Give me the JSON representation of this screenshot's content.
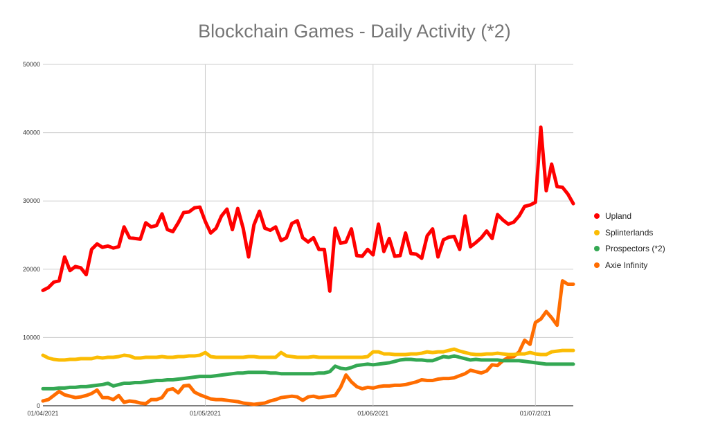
{
  "chart_data": {
    "type": "line",
    "title": "Blockchain Games - Daily Activity (*2)",
    "xlabel": "",
    "ylabel": "",
    "x_start": "2021-04-01",
    "x_tick_labels": [
      "01/04/2021",
      "01/05/2021",
      "01/06/2021",
      "01/07/2021"
    ],
    "y_tick_labels": [
      "0",
      "10000",
      "20000",
      "30000",
      "40000",
      "50000"
    ],
    "ylim": [
      0,
      50000
    ],
    "grid": true,
    "legend_position": "right",
    "series": [
      {
        "name": "Upland",
        "color": "#ff0000",
        "values": [
          16900,
          17300,
          18100,
          18300,
          21800,
          19800,
          20400,
          20200,
          19200,
          22900,
          23700,
          23200,
          23400,
          23100,
          23300,
          26200,
          24600,
          24500,
          24400,
          26800,
          26200,
          26400,
          28100,
          25800,
          25500,
          26800,
          28300,
          28400,
          29000,
          29100,
          27000,
          25300,
          26000,
          27800,
          28800,
          25800,
          28900,
          26000,
          21800,
          26500,
          28500,
          26000,
          25700,
          26200,
          24200,
          24600,
          26700,
          27100,
          24600,
          24000,
          24600,
          22900,
          22900,
          16800,
          26000,
          23800,
          24000,
          25900,
          22000,
          21900,
          22900,
          22100,
          26600,
          22600,
          24500,
          21900,
          22000,
          25300,
          22300,
          22200,
          21600,
          24900,
          25900,
          21800,
          24300,
          24700,
          24800,
          22900,
          27800,
          23300,
          23900,
          24600,
          25600,
          24500,
          28000,
          27200,
          26600,
          26900,
          27800,
          29200,
          29400,
          29800,
          40800,
          31500,
          35400,
          32100,
          32000,
          31000,
          29600
        ]
      },
      {
        "name": "Splinterlands",
        "color": "#fbbc04",
        "values": [
          7400,
          7000,
          6800,
          6700,
          6700,
          6800,
          6800,
          6900,
          6900,
          6900,
          7100,
          7000,
          7100,
          7100,
          7200,
          7400,
          7300,
          7000,
          7000,
          7100,
          7100,
          7100,
          7200,
          7100,
          7100,
          7200,
          7200,
          7300,
          7300,
          7400,
          7800,
          7200,
          7100,
          7100,
          7100,
          7100,
          7100,
          7100,
          7200,
          7200,
          7100,
          7100,
          7100,
          7100,
          7800,
          7300,
          7200,
          7100,
          7100,
          7100,
          7200,
          7100,
          7100,
          7100,
          7100,
          7100,
          7100,
          7100,
          7100,
          7100,
          7200,
          7900,
          7900,
          7600,
          7600,
          7500,
          7500,
          7500,
          7600,
          7600,
          7700,
          7900,
          7800,
          7900,
          7900,
          8100,
          8300,
          8000,
          7800,
          7600,
          7500,
          7500,
          7600,
          7600,
          7700,
          7600,
          7500,
          7500,
          7600,
          7600,
          7800,
          7600,
          7500,
          7500,
          7900,
          8000,
          8100,
          8100,
          8100
        ]
      },
      {
        "name": "Prospectors (*2)",
        "color": "#34a853",
        "values": [
          2500,
          2500,
          2500,
          2600,
          2600,
          2700,
          2700,
          2800,
          2800,
          2900,
          3000,
          3100,
          3300,
          2900,
          3100,
          3300,
          3300,
          3400,
          3400,
          3500,
          3600,
          3700,
          3700,
          3800,
          3800,
          3900,
          4000,
          4100,
          4200,
          4300,
          4300,
          4300,
          4400,
          4500,
          4600,
          4700,
          4800,
          4800,
          4900,
          4900,
          4900,
          4900,
          4800,
          4800,
          4700,
          4700,
          4700,
          4700,
          4700,
          4700,
          4700,
          4800,
          4800,
          5000,
          5800,
          5500,
          5400,
          5600,
          5900,
          6000,
          6100,
          6000,
          6100,
          6200,
          6300,
          6500,
          6700,
          6800,
          6800,
          6700,
          6700,
          6600,
          6600,
          6900,
          7200,
          7100,
          7300,
          7100,
          6900,
          6700,
          6800,
          6700,
          6700,
          6700,
          6700,
          6600,
          6600,
          6600,
          6600,
          6500,
          6400,
          6300,
          6200,
          6100,
          6100,
          6100,
          6100,
          6100,
          6100
        ]
      },
      {
        "name": "Axie Infinity",
        "color": "#ff6d01",
        "values": [
          700,
          900,
          1500,
          2100,
          1600,
          1400,
          1200,
          1300,
          1500,
          1800,
          2300,
          1200,
          1200,
          900,
          1500,
          500,
          700,
          600,
          400,
          300,
          900,
          900,
          1200,
          2300,
          2500,
          1900,
          2900,
          3000,
          2000,
          1600,
          1300,
          1000,
          900,
          900,
          800,
          700,
          600,
          400,
          300,
          200,
          300,
          400,
          700,
          900,
          1200,
          1300,
          1400,
          1300,
          800,
          1300,
          1400,
          1200,
          1300,
          1400,
          1500,
          2700,
          4500,
          3500,
          2800,
          2500,
          2700,
          2600,
          2800,
          2900,
          2900,
          3000,
          3000,
          3100,
          3300,
          3500,
          3800,
          3700,
          3700,
          3900,
          4000,
          4000,
          4100,
          4400,
          4700,
          5200,
          5000,
          4800,
          5100,
          6000,
          5900,
          6600,
          7100,
          7200,
          7900,
          9600,
          9000,
          12200,
          12700,
          13800,
          12900,
          11800,
          18300,
          17800,
          17800
        ]
      }
    ]
  }
}
